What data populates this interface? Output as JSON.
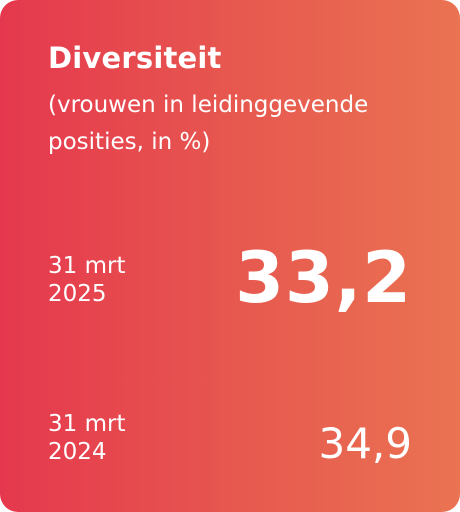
{
  "card": {
    "title": "Diversiteit",
    "subtitle": "(vrouwen in leidinggevende posities, in %)",
    "gradient_start": "#e5384e",
    "gradient_end": "#ea7352",
    "text_color": "#ffffff"
  },
  "current": {
    "date_line1": "31 mrt",
    "date_line2": "2025",
    "value": "33,2"
  },
  "previous": {
    "date_line1": "31 mrt",
    "date_line2": "2024",
    "value": "34,9"
  }
}
